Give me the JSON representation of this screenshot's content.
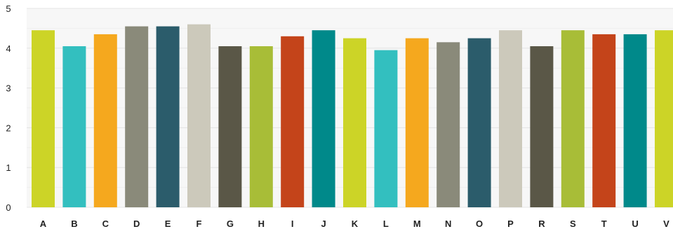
{
  "chart_data": {
    "type": "bar",
    "title": "",
    "xlabel": "",
    "ylabel": "",
    "ylim": [
      0,
      5
    ],
    "yticks": [
      0,
      1,
      2,
      3,
      4,
      5
    ],
    "grid": true,
    "legend": "none",
    "categories": [
      "A",
      "B",
      "C",
      "D",
      "E",
      "F",
      "G",
      "H",
      "I",
      "J",
      "K",
      "L",
      "M",
      "N",
      "O",
      "P",
      "R",
      "S",
      "T",
      "U",
      "V"
    ],
    "values": [
      4.45,
      4.05,
      4.35,
      4.55,
      4.55,
      4.6,
      4.05,
      4.05,
      4.3,
      4.45,
      4.25,
      3.95,
      4.25,
      4.15,
      4.25,
      4.45,
      4.05,
      4.45,
      4.35,
      4.35,
      4.45
    ],
    "colors": [
      "#ccd427",
      "#33bfbf",
      "#f5a81e",
      "#8a8a7a",
      "#2b5c6b",
      "#ccc9bb",
      "#5a5747",
      "#a8bd37",
      "#c4441a",
      "#00898a",
      "#ccd427",
      "#33bfbf",
      "#f5a81e",
      "#8a8a7a",
      "#2b5c6b",
      "#ccc9bb",
      "#5a5747",
      "#a8bd37",
      "#c4441a",
      "#00898a",
      "#ccd427"
    ]
  }
}
